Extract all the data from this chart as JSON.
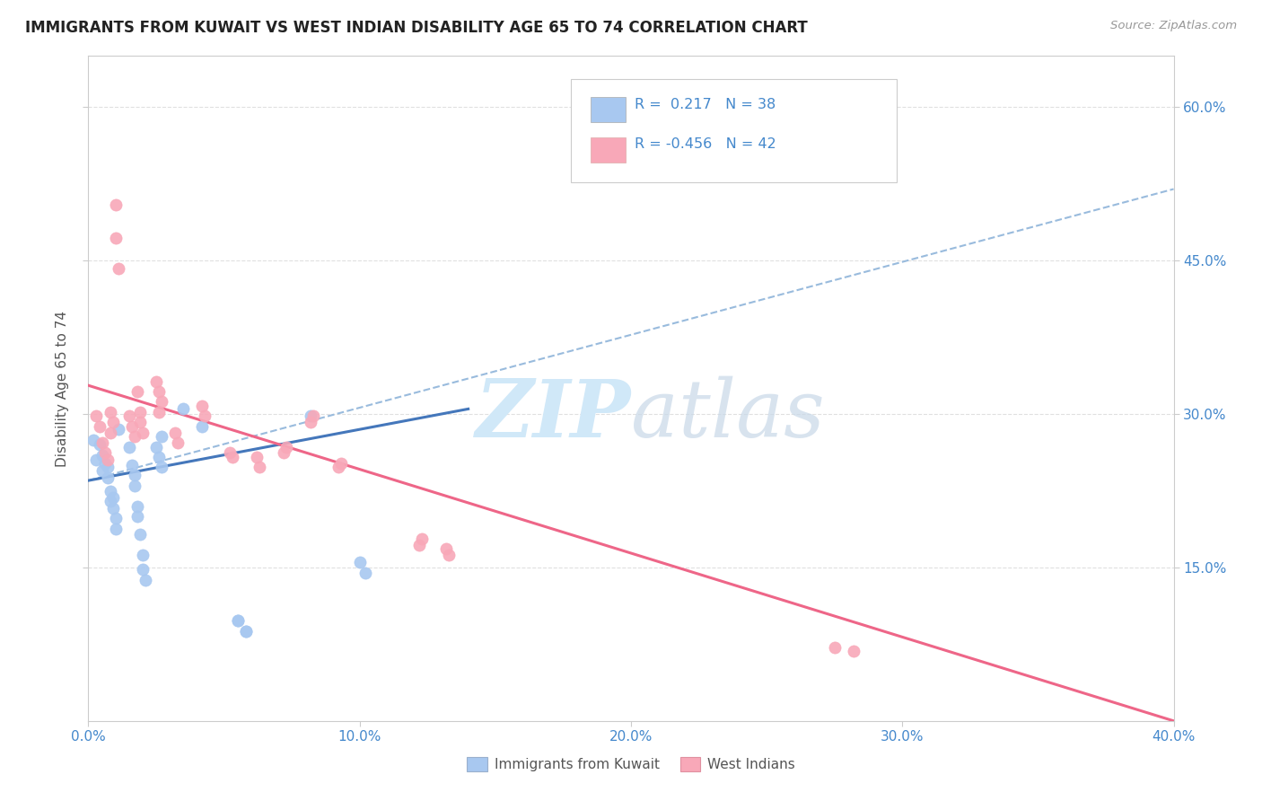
{
  "title": "IMMIGRANTS FROM KUWAIT VS WEST INDIAN DISABILITY AGE 65 TO 74 CORRELATION CHART",
  "source": "Source: ZipAtlas.com",
  "ylabel": "Disability Age 65 to 74",
  "xticklabels": [
    "0.0%",
    "10.0%",
    "20.0%",
    "30.0%",
    "40.0%"
  ],
  "xticklabels_positions": [
    0.0,
    0.1,
    0.2,
    0.3,
    0.4
  ],
  "yticklabels": [
    "15.0%",
    "30.0%",
    "45.0%",
    "60.0%"
  ],
  "yticklabels_positions": [
    0.15,
    0.3,
    0.45,
    0.6
  ],
  "xlim": [
    0.0,
    0.4
  ],
  "ylim": [
    0.0,
    0.65
  ],
  "r_kuwait": 0.217,
  "n_kuwait": 38,
  "r_westindian": -0.456,
  "n_westindian": 42,
  "legend_labels": [
    "Immigrants from Kuwait",
    "West Indians"
  ],
  "kuwait_color": "#a8c8f0",
  "westindian_color": "#f8a8b8",
  "kuwait_line_color": "#4477bb",
  "westindian_line_color": "#ee6688",
  "kuwait_trend_color": "#99bbdd",
  "watermark_color": "#d0e8f8",
  "background_color": "#ffffff",
  "grid_color": "#e0e0e0",
  "axis_color": "#cccccc",
  "title_color": "#222222",
  "tick_color": "#4488cc",
  "kuwait_scatter": [
    [
      0.002,
      0.275
    ],
    [
      0.003,
      0.255
    ],
    [
      0.004,
      0.27
    ],
    [
      0.005,
      0.26
    ],
    [
      0.005,
      0.245
    ],
    [
      0.006,
      0.252
    ],
    [
      0.007,
      0.238
    ],
    [
      0.007,
      0.248
    ],
    [
      0.008,
      0.225
    ],
    [
      0.008,
      0.215
    ],
    [
      0.009,
      0.218
    ],
    [
      0.009,
      0.208
    ],
    [
      0.01,
      0.198
    ],
    [
      0.01,
      0.188
    ],
    [
      0.011,
      0.285
    ],
    [
      0.015,
      0.268
    ],
    [
      0.016,
      0.25
    ],
    [
      0.017,
      0.24
    ],
    [
      0.017,
      0.23
    ],
    [
      0.018,
      0.21
    ],
    [
      0.018,
      0.2
    ],
    [
      0.019,
      0.182
    ],
    [
      0.02,
      0.162
    ],
    [
      0.02,
      0.148
    ],
    [
      0.021,
      0.138
    ],
    [
      0.025,
      0.268
    ],
    [
      0.026,
      0.258
    ],
    [
      0.027,
      0.248
    ],
    [
      0.027,
      0.278
    ],
    [
      0.035,
      0.305
    ],
    [
      0.042,
      0.288
    ],
    [
      0.055,
      0.098
    ],
    [
      0.058,
      0.088
    ],
    [
      0.082,
      0.298
    ],
    [
      0.1,
      0.155
    ],
    [
      0.102,
      0.145
    ],
    [
      0.055,
      0.098
    ],
    [
      0.058,
      0.088
    ]
  ],
  "westindian_scatter": [
    [
      0.003,
      0.298
    ],
    [
      0.004,
      0.288
    ],
    [
      0.005,
      0.272
    ],
    [
      0.006,
      0.262
    ],
    [
      0.007,
      0.255
    ],
    [
      0.008,
      0.282
    ],
    [
      0.008,
      0.302
    ],
    [
      0.009,
      0.292
    ],
    [
      0.01,
      0.505
    ],
    [
      0.01,
      0.472
    ],
    [
      0.011,
      0.442
    ],
    [
      0.015,
      0.298
    ],
    [
      0.016,
      0.288
    ],
    [
      0.017,
      0.278
    ],
    [
      0.018,
      0.322
    ],
    [
      0.019,
      0.302
    ],
    [
      0.019,
      0.292
    ],
    [
      0.02,
      0.282
    ],
    [
      0.025,
      0.332
    ],
    [
      0.026,
      0.322
    ],
    [
      0.026,
      0.302
    ],
    [
      0.027,
      0.312
    ],
    [
      0.032,
      0.282
    ],
    [
      0.033,
      0.272
    ],
    [
      0.042,
      0.308
    ],
    [
      0.043,
      0.298
    ],
    [
      0.052,
      0.262
    ],
    [
      0.053,
      0.258
    ],
    [
      0.062,
      0.258
    ],
    [
      0.063,
      0.248
    ],
    [
      0.072,
      0.262
    ],
    [
      0.073,
      0.268
    ],
    [
      0.082,
      0.292
    ],
    [
      0.083,
      0.298
    ],
    [
      0.092,
      0.248
    ],
    [
      0.093,
      0.252
    ],
    [
      0.122,
      0.172
    ],
    [
      0.123,
      0.178
    ],
    [
      0.132,
      0.168
    ],
    [
      0.133,
      0.162
    ],
    [
      0.275,
      0.072
    ],
    [
      0.282,
      0.068
    ]
  ],
  "kuwait_trendline": [
    [
      0.0,
      0.235
    ],
    [
      0.14,
      0.305
    ]
  ],
  "kuwait_dashed_trendline": [
    [
      0.0,
      0.235
    ],
    [
      0.4,
      0.52
    ]
  ],
  "westindian_trendline": [
    [
      0.0,
      0.328
    ],
    [
      0.4,
      0.0
    ]
  ]
}
